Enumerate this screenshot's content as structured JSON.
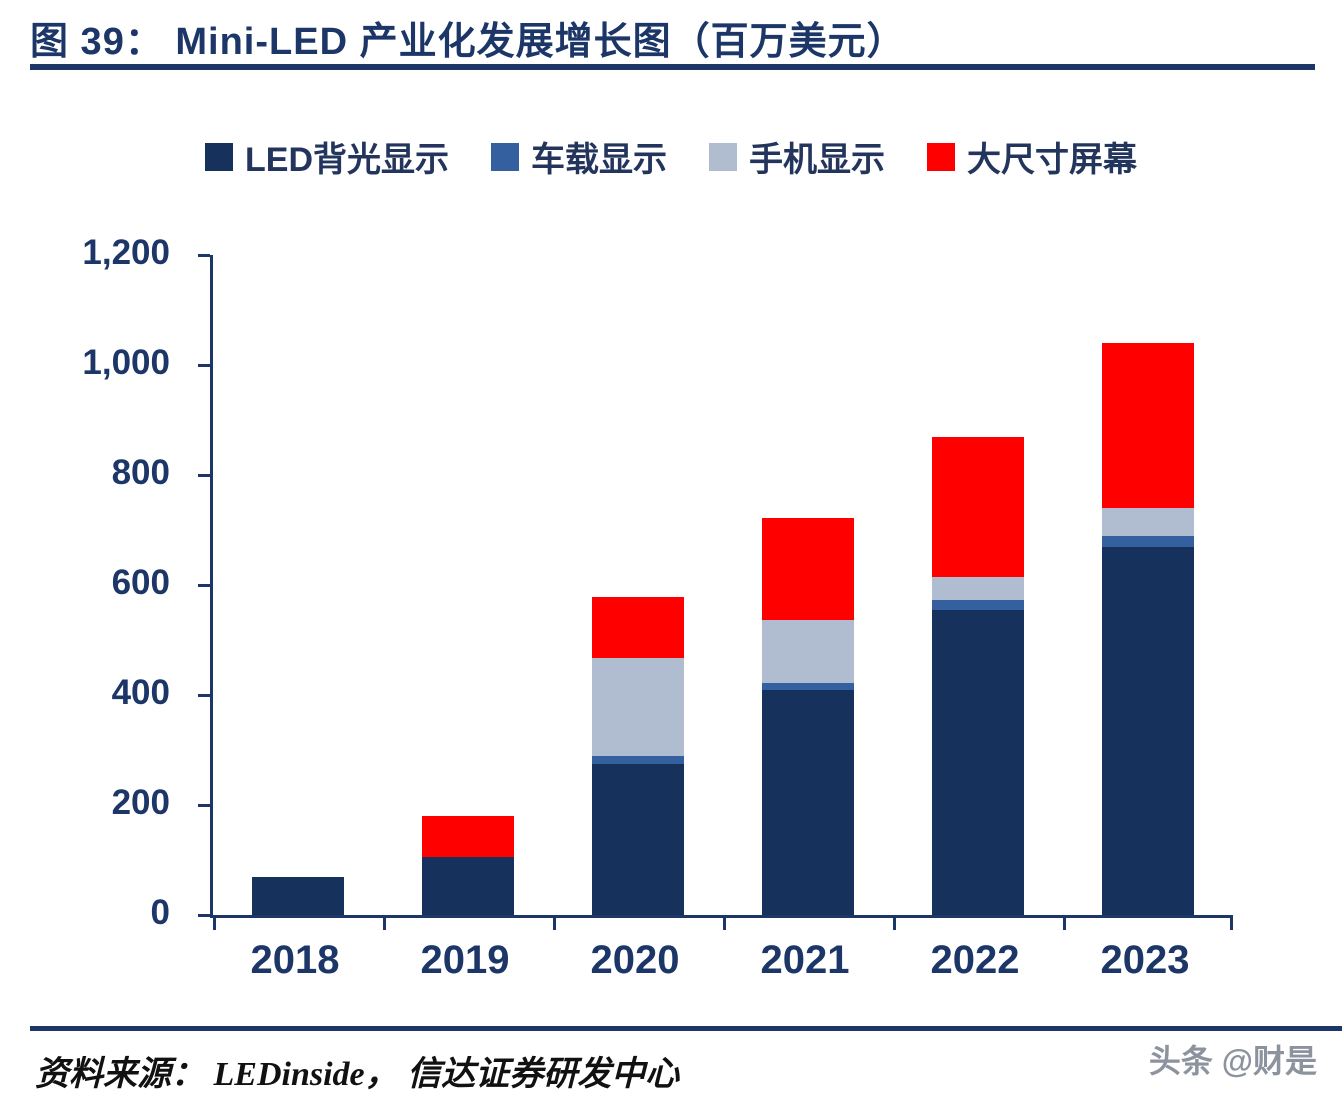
{
  "title": "图 39：  Mini-LED 产业化发展增长图（百万美元）",
  "legend": [
    {
      "label": "LED背光显示",
      "color": "#16325c"
    },
    {
      "label": "车载显示",
      "color": "#35609f"
    },
    {
      "label": "手机显示",
      "color": "#b0bdd0"
    },
    {
      "label": "大尺寸屏幕",
      "color": "#ff0000"
    }
  ],
  "chart_data": {
    "type": "bar",
    "stacked": true,
    "title": "Mini-LED 产业化发展增长图（百万美元）",
    "categories": [
      "2018",
      "2019",
      "2020",
      "2021",
      "2022",
      "2023"
    ],
    "series": [
      {
        "name": "LED背光显示",
        "color": "#16325c",
        "values": [
          70,
          105,
          275,
          410,
          555,
          670
        ]
      },
      {
        "name": "车载显示",
        "color": "#35609f",
        "values": [
          0,
          0,
          15,
          12,
          18,
          20
        ]
      },
      {
        "name": "手机显示",
        "color": "#b0bdd0",
        "values": [
          0,
          0,
          178,
          115,
          42,
          50
        ]
      },
      {
        "name": "大尺寸屏幕",
        "color": "#ff0000",
        "values": [
          0,
          75,
          110,
          185,
          255,
          300
        ]
      }
    ],
    "totals": [
      70,
      180,
      578,
      722,
      870,
      1040
    ],
    "ylim": [
      0,
      1200
    ],
    "ytick_step": 200,
    "ytick_labels": [
      "0",
      "200",
      "400",
      "600",
      "800",
      "1,000",
      "1,200"
    ],
    "grid": false,
    "legend_position": "top"
  },
  "footer": {
    "source": "资料来源： LEDinside， 信达证券研发中心",
    "watermark": "头条 @财是"
  }
}
